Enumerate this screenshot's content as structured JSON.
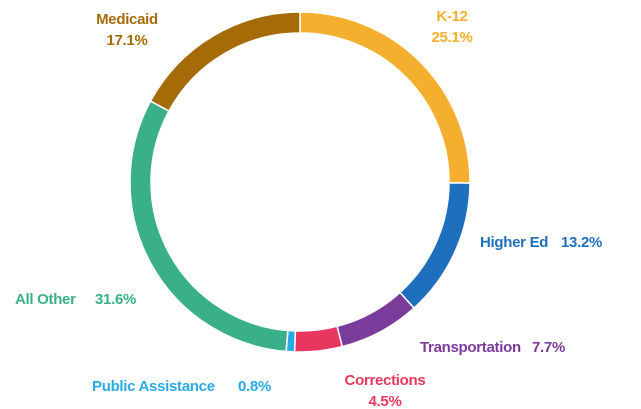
{
  "chart_data": {
    "type": "donut",
    "categories": [
      "K-12",
      "Higher Ed",
      "Transportation",
      "Corrections",
      "Public Assistance",
      "All Other",
      "Medicaid"
    ],
    "values": [
      25.1,
      13.2,
      7.7,
      4.5,
      0.8,
      31.6,
      17.1
    ],
    "value_labels": [
      "25.1%",
      "13.2%",
      "7.7%",
      "4.5%",
      "0.8%",
      "31.6%",
      "17.1%"
    ],
    "colors": [
      "#F5AF2E",
      "#1F6FBF",
      "#7A3C9A",
      "#E8375E",
      "#29ABE2",
      "#3AB08A",
      "#A56B07"
    ]
  }
}
